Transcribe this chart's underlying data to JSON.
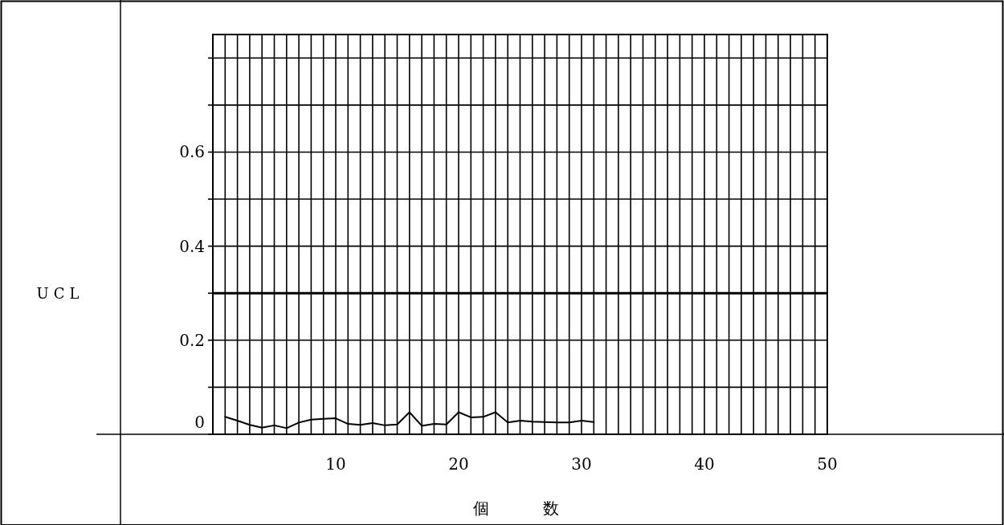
{
  "chart_data": {
    "type": "line",
    "xlabel": "個 数",
    "x": [
      1,
      2,
      3,
      4,
      5,
      6,
      7,
      8,
      9,
      10,
      11,
      12,
      13,
      14,
      15,
      16,
      17,
      18,
      19,
      20,
      21,
      22,
      23,
      24,
      25,
      26,
      27,
      28,
      29,
      30,
      31
    ],
    "series": [
      {
        "color": "#000000",
        "values": [
          0.037,
          0.029,
          0.02,
          0.014,
          0.019,
          0.013,
          0.025,
          0.031,
          0.033,
          0.034,
          0.022,
          0.02,
          0.024,
          0.019,
          0.021,
          0.047,
          0.018,
          0.022,
          0.021,
          0.047,
          0.036,
          0.037,
          0.047,
          0.025,
          0.029,
          0.027,
          0.026,
          0.025,
          0.025,
          0.029,
          0.026
        ]
      }
    ],
    "xlim": [
      0,
      50
    ],
    "ylim": [
      0,
      0.85
    ],
    "xticks": [
      {
        "value": 0,
        "label": null
      },
      {
        "value": 1,
        "label": null
      },
      {
        "value": 2,
        "label": null
      },
      {
        "value": 3,
        "label": null
      },
      {
        "value": 4,
        "label": null
      },
      {
        "value": 5,
        "label": null
      },
      {
        "value": 6,
        "label": null
      },
      {
        "value": 7,
        "label": null
      },
      {
        "value": 8,
        "label": null
      },
      {
        "value": 9,
        "label": null
      },
      10,
      {
        "value": 11,
        "label": null
      },
      {
        "value": 12,
        "label": null
      },
      {
        "value": 13,
        "label": null
      },
      {
        "value": 14,
        "label": null
      },
      {
        "value": 15,
        "label": null
      },
      {
        "value": 16,
        "label": null
      },
      {
        "value": 17,
        "label": null
      },
      {
        "value": 18,
        "label": null
      },
      {
        "value": 19,
        "label": null
      },
      20,
      {
        "value": 21,
        "label": null
      },
      {
        "value": 22,
        "label": null
      },
      {
        "value": 23,
        "label": null
      },
      {
        "value": 24,
        "label": null
      },
      {
        "value": 25,
        "label": null
      },
      {
        "value": 26,
        "label": null
      },
      {
        "value": 27,
        "label": null
      },
      {
        "value": 28,
        "label": null
      },
      {
        "value": 29,
        "label": null
      },
      30,
      {
        "value": 31,
        "label": null
      },
      {
        "value": 32,
        "label": null
      },
      {
        "value": 33,
        "label": null
      },
      {
        "value": 34,
        "label": null
      },
      {
        "value": 35,
        "label": null
      },
      {
        "value": 36,
        "label": null
      },
      {
        "value": 37,
        "label": null
      },
      {
        "value": 38,
        "label": null
      },
      {
        "value": 39,
        "label": null
      },
      40,
      {
        "value": 41,
        "label": null
      },
      {
        "value": 42,
        "label": null
      },
      {
        "value": 43,
        "label": null
      },
      {
        "value": 44,
        "label": null
      },
      {
        "value": 45,
        "label": null
      },
      {
        "value": 46,
        "label": null
      },
      {
        "value": 47,
        "label": null
      },
      {
        "value": 48,
        "label": null
      },
      {
        "value": 49,
        "label": null
      },
      50
    ],
    "yticks": [
      0,
      {
        "value": 0.1,
        "label": null
      },
      0.2,
      {
        "value": 0.3,
        "label": null
      },
      0.4,
      {
        "value": 0.5,
        "label": null
      },
      0.6,
      {
        "value": 0.7,
        "label": null
      },
      {
        "value": 0.8,
        "label": null
      }
    ],
    "grid": true,
    "marker": "none",
    "line_style": "solid",
    "ref_lines": [
      {
        "axis": "y",
        "value": 0.3,
        "label": "UCL",
        "color": "#000000"
      }
    ]
  }
}
